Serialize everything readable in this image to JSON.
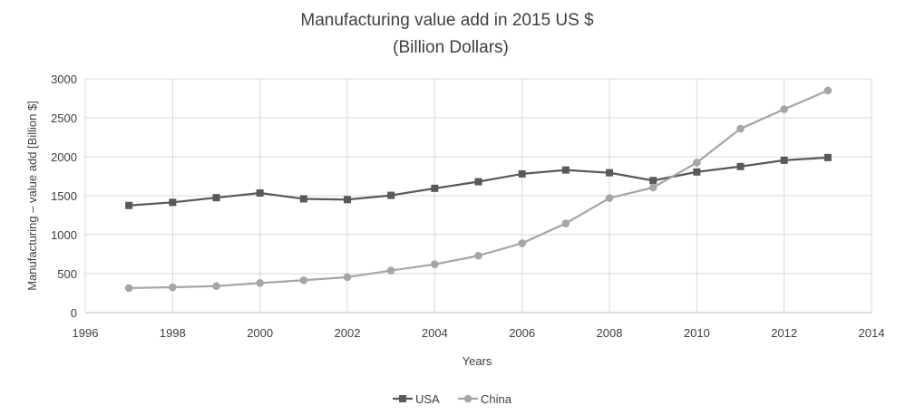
{
  "chart_data": {
    "type": "line",
    "title": "Manufacturing value add in 2015 US $",
    "subtitle": "(Billion Dollars)",
    "xlabel": "Years",
    "ylabel": "Manufacturing – value add [Billion $]",
    "xlim": [
      1996,
      2014
    ],
    "ylim": [
      0,
      3000
    ],
    "x_ticks": [
      "1996",
      "1998",
      "2000",
      "2002",
      "2004",
      "2006",
      "2008",
      "2010",
      "2012",
      "2014"
    ],
    "y_ticks": [
      "0",
      "500",
      "1000",
      "1500",
      "2000",
      "2500",
      "3000"
    ],
    "grid": true,
    "legend_position": "bottom",
    "x": [
      1997,
      1998,
      1999,
      2000,
      2001,
      2002,
      2003,
      2004,
      2005,
      2006,
      2007,
      2008,
      2009,
      2010,
      2011,
      2012,
      2013
    ],
    "series": [
      {
        "name": "USA",
        "marker": "square",
        "color": "#595959",
        "values": [
          1375,
          1415,
          1475,
          1535,
          1460,
          1450,
          1505,
          1595,
          1680,
          1780,
          1830,
          1795,
          1695,
          1805,
          1875,
          1955,
          1990
        ]
      },
      {
        "name": "China",
        "marker": "circle",
        "color": "#a6a6a6",
        "values": [
          315,
          325,
          340,
          380,
          415,
          455,
          540,
          620,
          730,
          890,
          1145,
          1470,
          1605,
          1925,
          2360,
          2610,
          2850
        ]
      }
    ]
  }
}
